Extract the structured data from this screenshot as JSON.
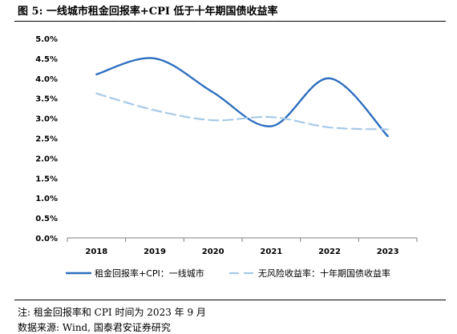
{
  "figure": {
    "title": "图 5:  一线城市租金回报率+CPI 低于十年期国债收益率"
  },
  "chart_data": {
    "type": "line",
    "x": [
      "2018",
      "2019",
      "2020",
      "2021",
      "2022",
      "2023"
    ],
    "ylim": [
      0,
      5
    ],
    "yticks": [
      "0.0%",
      "0.5%",
      "1.0%",
      "1.5%",
      "2.0%",
      "2.5%",
      "3.0%",
      "3.5%",
      "4.0%",
      "4.5%",
      "5.0%"
    ],
    "series": [
      {
        "name": "租金回报率+CPI：一线城市",
        "values": [
          4.1,
          4.5,
          3.65,
          2.8,
          4.0,
          2.55
        ],
        "color": "#2e6fbf",
        "style": "solid"
      },
      {
        "name": "无风险收益率：十年期国债收益率",
        "values": [
          3.62,
          3.2,
          2.95,
          3.03,
          2.77,
          2.72
        ],
        "color": "#a9c9e8",
        "style": "dashed"
      }
    ],
    "legend_position": "bottom",
    "grid": false
  },
  "notes": {
    "line1": "注: 租金回报率和 CPI 时间为 2023 年 9 月",
    "line2": "数据来源: Wind, 国泰君安证券研究"
  }
}
